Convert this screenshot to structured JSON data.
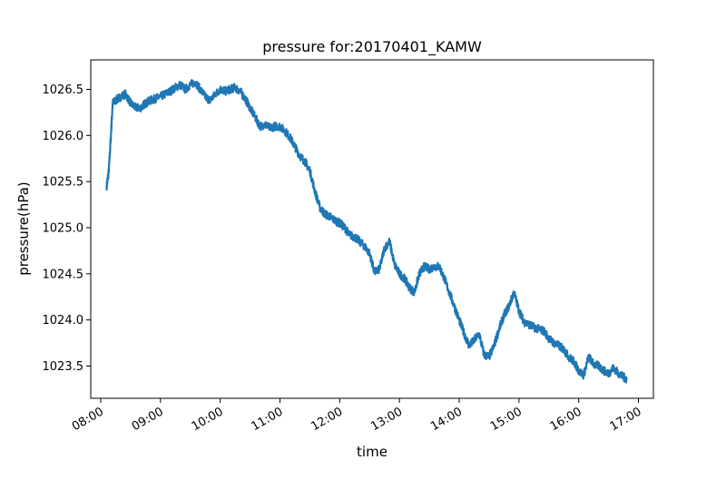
{
  "chart_data": {
    "type": "line",
    "title": "pressure for:20170401_KAMW",
    "xlabel": "time",
    "ylabel": "pressure(hPa)",
    "xlim": [
      "07:50",
      "17:15"
    ],
    "ylim": [
      1023.15,
      1026.82
    ],
    "x_ticks": [
      "08:00",
      "09:00",
      "10:00",
      "11:00",
      "12:00",
      "13:00",
      "14:00",
      "15:00",
      "16:00",
      "17:00"
    ],
    "y_ticks": [
      "1023.5",
      "1024.0",
      "1024.5",
      "1025.0",
      "1025.5",
      "1026.0",
      "1026.5"
    ],
    "grid": false,
    "line_color": "#1f77b4",
    "series": [
      {
        "x": [
          "08:06",
          "08:08",
          "08:10",
          "08:12",
          "08:15",
          "08:20",
          "08:25",
          "08:30",
          "08:35",
          "08:40",
          "08:45",
          "08:50",
          "08:55",
          "09:00",
          "09:05",
          "09:10",
          "09:15",
          "09:20",
          "09:25",
          "09:30",
          "09:35",
          "09:40",
          "09:45",
          "09:50",
          "09:55",
          "10:00",
          "10:05",
          "10:10",
          "10:15",
          "10:20",
          "10:25",
          "10:30",
          "10:35",
          "10:40",
          "10:45",
          "10:50",
          "10:55",
          "11:00",
          "11:05",
          "11:10",
          "11:15",
          "11:20",
          "11:25",
          "11:30",
          "11:35",
          "11:40",
          "11:45",
          "11:50",
          "11:55",
          "12:00",
          "12:05",
          "12:10",
          "12:15",
          "12:20",
          "12:25",
          "12:30",
          "12:35",
          "12:40",
          "12:45",
          "12:50",
          "12:55",
          "13:00",
          "13:05",
          "13:10",
          "13:15",
          "13:20",
          "13:25",
          "13:30",
          "13:35",
          "13:40",
          "13:45",
          "13:50",
          "13:55",
          "14:00",
          "14:05",
          "14:10",
          "14:15",
          "14:20",
          "14:25",
          "14:30",
          "14:35",
          "14:40",
          "14:45",
          "14:50",
          "14:55",
          "15:00",
          "15:05",
          "15:10",
          "15:15",
          "15:20",
          "15:25",
          "15:30",
          "15:35",
          "15:40",
          "15:45",
          "15:50",
          "15:55",
          "16:00",
          "16:05",
          "16:10",
          "16:15",
          "16:20",
          "16:25",
          "16:30",
          "16:35",
          "16:40",
          "16:45",
          "16:48"
        ],
        "values": [
          1025.45,
          1025.6,
          1025.95,
          1026.35,
          1026.38,
          1026.42,
          1026.45,
          1026.35,
          1026.3,
          1026.3,
          1026.35,
          1026.38,
          1026.4,
          1026.42,
          1026.45,
          1026.48,
          1026.52,
          1026.55,
          1026.5,
          1026.55,
          1026.58,
          1026.5,
          1026.42,
          1026.38,
          1026.45,
          1026.5,
          1026.48,
          1026.5,
          1026.52,
          1026.48,
          1026.4,
          1026.3,
          1026.2,
          1026.1,
          1026.12,
          1026.08,
          1026.1,
          1026.1,
          1026.05,
          1025.98,
          1025.88,
          1025.78,
          1025.72,
          1025.62,
          1025.4,
          1025.22,
          1025.15,
          1025.12,
          1025.08,
          1025.05,
          1025.0,
          1024.92,
          1024.9,
          1024.85,
          1024.8,
          1024.72,
          1024.52,
          1024.55,
          1024.78,
          1024.85,
          1024.6,
          1024.5,
          1024.45,
          1024.35,
          1024.3,
          1024.5,
          1024.58,
          1024.55,
          1024.58,
          1024.58,
          1024.45,
          1024.3,
          1024.15,
          1024.0,
          1023.85,
          1023.72,
          1023.78,
          1023.85,
          1023.62,
          1023.6,
          1023.72,
          1023.9,
          1024.05,
          1024.15,
          1024.3,
          1024.1,
          1023.98,
          1023.95,
          1023.92,
          1023.9,
          1023.88,
          1023.8,
          1023.75,
          1023.72,
          1023.68,
          1023.6,
          1023.55,
          1023.45,
          1023.4,
          1023.6,
          1023.52,
          1023.5,
          1023.45,
          1023.42,
          1023.48,
          1023.42,
          1023.38,
          1023.36
        ]
      }
    ]
  }
}
